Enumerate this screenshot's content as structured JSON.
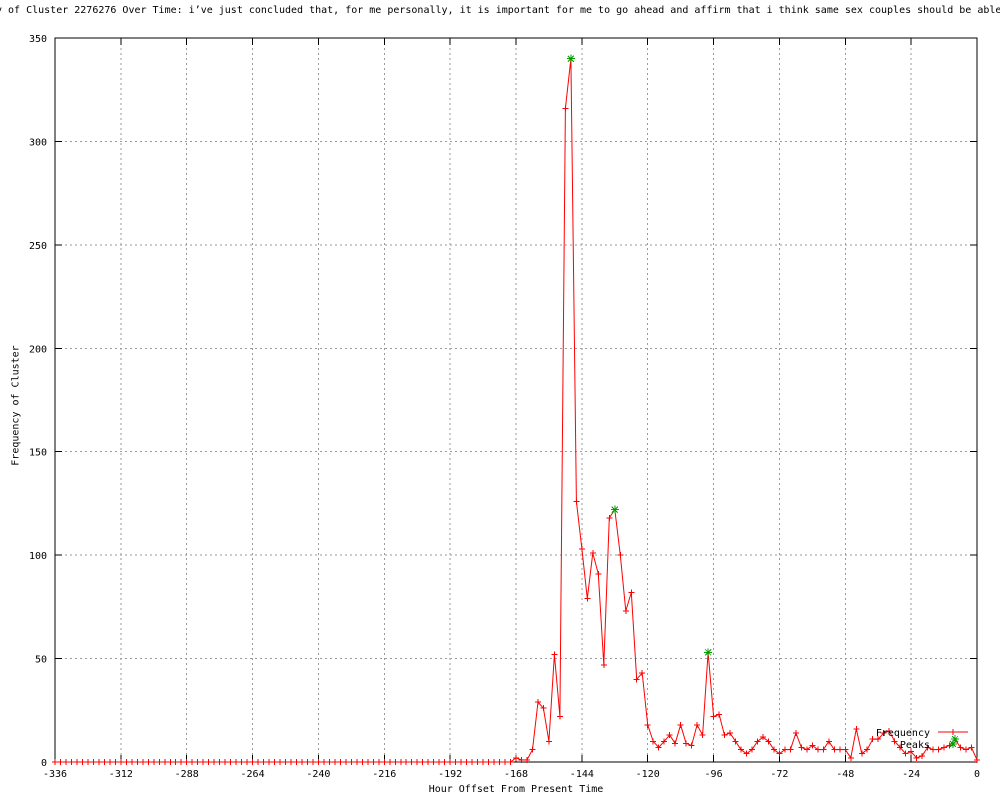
{
  "chart_data": {
    "type": "line",
    "title": "y of Cluster 2276276 Over Time: i’ve just concluded that, for me personally, it is important for me to go ahead and affirm that i think same sex couples should be able",
    "xlabel": "Hour Offset From Present Time",
    "ylabel": "Frequency of Cluster",
    "xlim": [
      -336,
      0
    ],
    "ylim": [
      0,
      350
    ],
    "x_ticks": [
      -336,
      -312,
      -288,
      -264,
      -240,
      -216,
      -192,
      -168,
      -144,
      -120,
      -96,
      -72,
      -48,
      -24,
      0
    ],
    "y_ticks": [
      0,
      50,
      100,
      150,
      200,
      250,
      300,
      350
    ],
    "grid": true,
    "legend_position": "bottom-right-inside",
    "colors": {
      "line": "#ff0000",
      "peaks": "#00a000",
      "grid": "#9a9a9a",
      "border": "#000000"
    },
    "x_start": -336,
    "x_step": 2,
    "series": [
      {
        "name": "Frequency",
        "marker": "plus",
        "color": "#ff0000",
        "values": [
          0,
          0,
          0,
          0,
          0,
          0,
          0,
          0,
          0,
          0,
          0,
          0,
          0,
          0,
          0,
          0,
          0,
          0,
          0,
          0,
          0,
          0,
          0,
          0,
          0,
          0,
          0,
          0,
          0,
          0,
          0,
          0,
          0,
          0,
          0,
          0,
          0,
          0,
          0,
          0,
          0,
          0,
          0,
          0,
          0,
          0,
          0,
          0,
          0,
          0,
          0,
          0,
          0,
          0,
          0,
          0,
          0,
          0,
          0,
          0,
          0,
          0,
          0,
          0,
          0,
          0,
          0,
          0,
          0,
          0,
          0,
          0,
          0,
          0,
          0,
          0,
          0,
          0,
          0,
          0,
          0,
          0,
          0,
          0,
          2,
          1,
          1,
          6,
          29,
          26,
          10,
          52,
          22,
          316,
          340,
          126,
          103,
          79,
          101,
          91,
          47,
          118,
          122,
          100,
          73,
          82,
          40,
          43,
          18,
          10,
          7,
          10,
          13,
          9,
          18,
          9,
          8,
          18,
          13,
          53,
          22,
          23,
          13,
          14,
          10,
          6,
          4,
          6,
          10,
          12,
          10,
          6,
          4,
          6,
          6,
          14,
          7,
          6,
          8,
          6,
          6,
          10,
          6,
          6,
          6,
          2,
          16,
          4,
          6,
          11,
          11,
          14,
          15,
          10,
          7,
          4,
          5,
          2,
          3,
          7,
          6,
          6,
          7,
          8,
          11,
          7,
          6,
          7,
          1
        ]
      },
      {
        "name": "Peaks",
        "marker": "asterisk",
        "color": "#00a000",
        "x": [
          -148,
          -132,
          -98,
          -8
        ],
        "y": [
          340,
          122,
          53,
          11
        ]
      }
    ]
  }
}
